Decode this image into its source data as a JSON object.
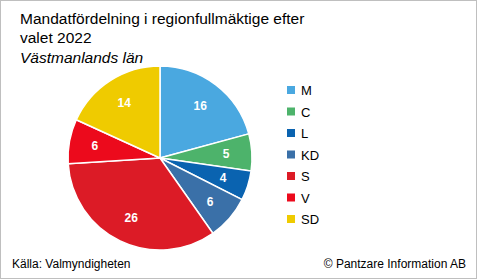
{
  "chart_data": {
    "type": "pie",
    "title": "Mandatfördelning i regionfullmäktige efter valet 2022",
    "subtitle": "Västmanlands län",
    "annotations": [
      "Källa: Valmyndigheten",
      "© Pantzare Information AB"
    ],
    "categories": [
      "M",
      "C",
      "L",
      "KD",
      "S",
      "V",
      "SD"
    ],
    "values": [
      16,
      5,
      4,
      6,
      26,
      6,
      14
    ],
    "colors": [
      "#4aa8e0",
      "#4db36b",
      "#0a63b0",
      "#3a70a8",
      "#dc1b26",
      "#ec0a1c",
      "#efcb00"
    ],
    "data_labels": true,
    "legend": "right"
  }
}
